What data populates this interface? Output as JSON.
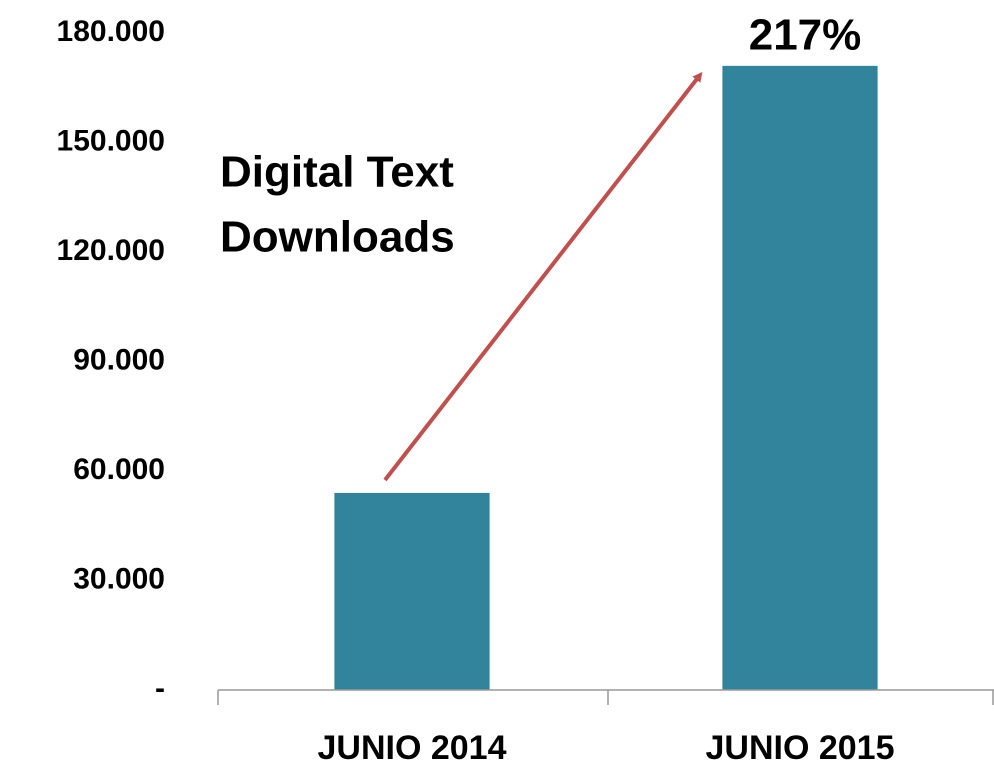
{
  "chart_data": {
    "type": "bar",
    "categories": [
      "JUNIO 2014",
      "JUNIO 2015"
    ],
    "values": [
      54000,
      171000
    ],
    "color": "#31849b",
    "ylim": [
      0,
      180000
    ],
    "yticks": [
      {
        "value": 0,
        "label": "-"
      },
      {
        "value": 30000,
        "label": "30.000"
      },
      {
        "value": 60000,
        "label": "60.000"
      },
      {
        "value": 90000,
        "label": "90.000"
      },
      {
        "value": 120000,
        "label": "120.000"
      },
      {
        "value": 150000,
        "label": "150.000"
      },
      {
        "value": 180000,
        "label": "180.000"
      }
    ],
    "grid": false,
    "annotations": [
      "Digital Text",
      "Downloads",
      "217%"
    ]
  }
}
